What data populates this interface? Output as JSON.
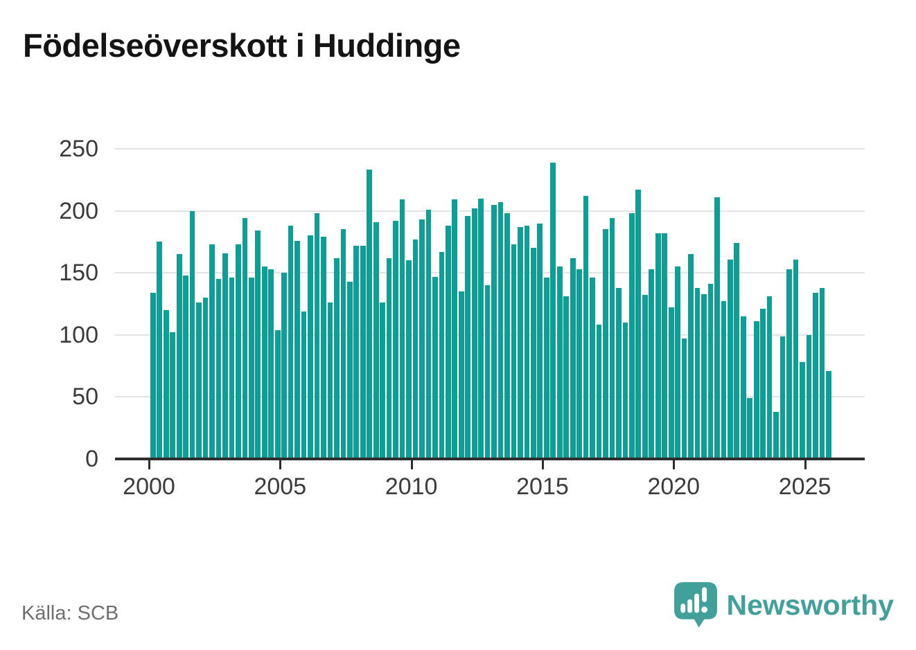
{
  "title": "Födelseöverskott i Huddinge",
  "source": "Källa: SCB",
  "brand": {
    "name": "Newsworthy",
    "color": "#42a09b"
  },
  "chart_data": {
    "type": "bar",
    "title": "Födelseöverskott i Huddinge",
    "bar_color": "#0d9e96",
    "grid": true,
    "x_tick_labels": [
      "2000",
      "2005",
      "2010",
      "2015",
      "2020",
      "2025"
    ],
    "y_ticks": [
      0,
      50,
      100,
      150,
      200,
      250
    ],
    "ylim": [
      0,
      261
    ],
    "x_axis_note": "quarterly values, 2000–2025",
    "series": [
      {
        "year": 2000,
        "values": [
          134,
          175,
          120,
          102
        ]
      },
      {
        "year": 2001,
        "values": [
          165,
          148,
          200,
          126
        ]
      },
      {
        "year": 2002,
        "values": [
          130,
          173,
          145,
          166
        ]
      },
      {
        "year": 2003,
        "values": [
          146,
          173,
          194,
          146
        ]
      },
      {
        "year": 2004,
        "values": [
          184,
          155,
          153,
          104
        ]
      },
      {
        "year": 2005,
        "values": [
          150,
          188,
          176,
          119
        ]
      },
      {
        "year": 2006,
        "values": [
          180,
          198,
          179,
          126
        ]
      },
      {
        "year": 2007,
        "values": [
          162,
          185,
          143,
          172
        ]
      },
      {
        "year": 2008,
        "values": [
          172,
          233,
          191,
          126
        ]
      },
      {
        "year": 2009,
        "values": [
          162,
          192,
          209,
          160
        ]
      },
      {
        "year": 2010,
        "values": [
          177,
          193,
          201,
          147
        ]
      },
      {
        "year": 2011,
        "values": [
          167,
          188,
          209,
          135
        ]
      },
      {
        "year": 2012,
        "values": [
          196,
          202,
          210,
          140
        ]
      },
      {
        "year": 2013,
        "values": [
          205,
          207,
          198,
          173
        ]
      },
      {
        "year": 2014,
        "values": [
          187,
          188,
          170,
          190
        ]
      },
      {
        "year": 2015,
        "values": [
          146,
          239,
          155,
          131
        ]
      },
      {
        "year": 2016,
        "values": [
          162,
          153,
          212,
          146
        ]
      },
      {
        "year": 2017,
        "values": [
          108,
          185,
          194,
          138
        ]
      },
      {
        "year": 2018,
        "values": [
          110,
          198,
          217,
          132
        ]
      },
      {
        "year": 2019,
        "values": [
          153,
          182,
          182,
          122
        ]
      },
      {
        "year": 2020,
        "values": [
          155,
          97,
          165,
          138
        ]
      },
      {
        "year": 2021,
        "values": [
          133,
          141,
          211,
          127
        ]
      },
      {
        "year": 2022,
        "values": [
          161,
          174,
          115,
          49
        ]
      },
      {
        "year": 2023,
        "values": [
          111,
          121,
          131,
          38
        ]
      },
      {
        "year": 2024,
        "values": [
          99,
          153,
          161,
          78
        ]
      },
      {
        "year": 2025,
        "values": [
          100,
          134,
          138,
          71
        ]
      }
    ]
  }
}
